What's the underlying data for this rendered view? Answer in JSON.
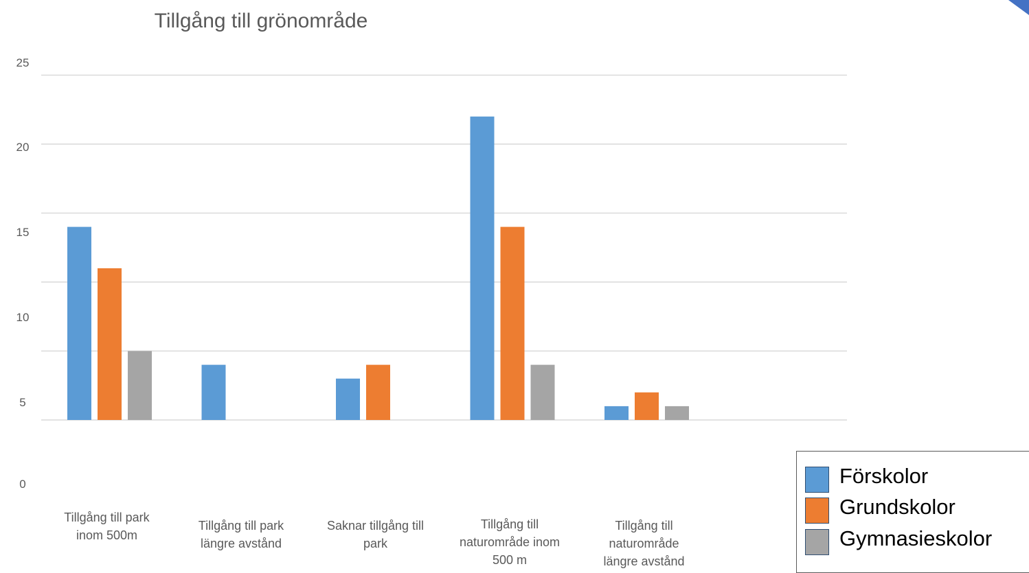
{
  "chart_data": {
    "type": "bar",
    "title": "Tillgång till grönområde",
    "categories": [
      [
        "Tillgång till park",
        "inom 500m"
      ],
      [
        "Tillgång till park",
        "längre avstånd"
      ],
      [
        "Saknar tillgång till",
        "park"
      ],
      [
        "Tillgång till",
        "naturområde inom",
        "500 m"
      ],
      [
        "Tillgång till",
        "naturområde",
        "längre avstånd"
      ]
    ],
    "series": [
      {
        "name": "Förskolor",
        "color": "#5b9bd5",
        "values": [
          14,
          4,
          3,
          22,
          1
        ]
      },
      {
        "name": "Grundskolor",
        "color": "#ed7d31",
        "values": [
          11,
          0,
          4,
          14,
          2
        ]
      },
      {
        "name": "Gymnasieskolor",
        "color": "#a5a5a5",
        "values": [
          5,
          0,
          0,
          4,
          1
        ]
      }
    ],
    "y_ticks": [
      "25",
      "20",
      "15",
      "10",
      "5",
      "0"
    ],
    "ylim": [
      0,
      26
    ],
    "grid": true,
    "legend_position": "bottom-right"
  },
  "legend": {
    "items": [
      {
        "label": "Förskolor",
        "color": "#5b9bd5"
      },
      {
        "label": "Grundskolor",
        "color": "#ed7d31"
      },
      {
        "label": "Gymnasieskolor",
        "color": "#a5a5a5"
      }
    ]
  },
  "decor": {
    "corner_color": "#4472c4"
  }
}
